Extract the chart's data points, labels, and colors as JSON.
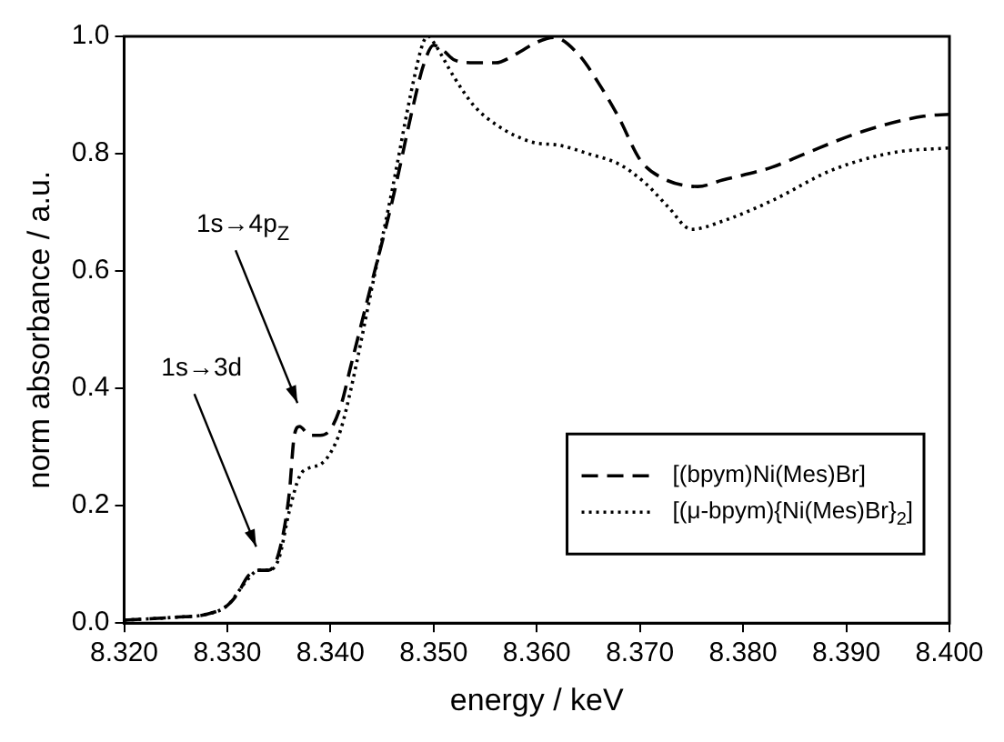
{
  "chart_data": {
    "type": "line",
    "xlabel": "energy / keV",
    "ylabel": "norm absorbance / a.u.",
    "xlim": [
      8.32,
      8.4
    ],
    "xticks": [
      {
        "value": 8.32,
        "label": "8.320"
      },
      {
        "value": 8.33,
        "label": "8.330"
      },
      {
        "value": 8.34,
        "label": "8.340"
      },
      {
        "value": 8.35,
        "label": "8.350"
      },
      {
        "value": 8.36,
        "label": "8.360"
      },
      {
        "value": 8.37,
        "label": "8.370"
      },
      {
        "value": 8.38,
        "label": "8.380"
      },
      {
        "value": 8.39,
        "label": "8.390"
      },
      {
        "value": 8.4,
        "label": "8.400"
      }
    ],
    "ylim": [
      0,
      1
    ],
    "yticks": [
      {
        "value": 0,
        "label": "0.0"
      },
      {
        "value": 0.2,
        "label": "0.2"
      },
      {
        "value": 0.4,
        "label": "0.4"
      },
      {
        "value": 0.6,
        "label": "0.6"
      },
      {
        "value": 0.8,
        "label": "0.8"
      },
      {
        "value": 1,
        "label": "1.0"
      }
    ],
    "grid": false,
    "legend": "bottom right",
    "marker": "none",
    "annotations": [
      "1s→3d",
      "1s→4p$_{Z}$"
    ],
    "series": [
      {
        "name": "[(bpym)Ni(Mes)Br]",
        "color": "#000000",
        "line_style": "dashed",
        "x": [
          8.32,
          8.325,
          8.328,
          8.33,
          8.331,
          8.332,
          8.333,
          8.334,
          8.335,
          8.336,
          8.3365,
          8.337,
          8.338,
          8.339,
          8.34,
          8.341,
          8.342,
          8.344,
          8.346,
          8.348,
          8.349,
          8.35,
          8.351,
          8.352,
          8.354,
          8.356,
          8.358,
          8.36,
          8.3617,
          8.364,
          8.366,
          8.368,
          8.37,
          8.372,
          8.3756,
          8.378,
          8.3828,
          8.386,
          8.3916,
          8.3975,
          8.4
        ],
        "values": [
          0.005,
          0.01,
          0.015,
          0.03,
          0.05,
          0.08,
          0.09,
          0.09,
          0.12,
          0.22,
          0.32,
          0.335,
          0.32,
          0.32,
          0.33,
          0.37,
          0.44,
          0.58,
          0.72,
          0.88,
          0.95,
          0.985,
          0.975,
          0.96,
          0.955,
          0.955,
          0.97,
          0.99,
          0.998,
          0.97,
          0.92,
          0.86,
          0.79,
          0.76,
          0.744,
          0.755,
          0.777,
          0.8,
          0.838,
          0.864,
          0.867
        ]
      },
      {
        "name": "[(μ-bpym){Ni(Mes)Br}$_{2}$]",
        "color": "#000000",
        "line_style": "dotted",
        "x": [
          8.32,
          8.325,
          8.328,
          8.33,
          8.332,
          8.333,
          8.334,
          8.335,
          8.336,
          8.337,
          8.338,
          8.339,
          8.34,
          8.341,
          8.342,
          8.344,
          8.346,
          8.348,
          8.349,
          8.3495,
          8.35,
          8.352,
          8.354,
          8.3561,
          8.358,
          8.36,
          8.362,
          8.365,
          8.368,
          8.3705,
          8.3727,
          8.375,
          8.378,
          8.3828,
          8.3886,
          8.3946,
          8.4
        ],
        "values": [
          0.005,
          0.01,
          0.015,
          0.03,
          0.075,
          0.09,
          0.09,
          0.11,
          0.19,
          0.25,
          0.265,
          0.27,
          0.29,
          0.33,
          0.4,
          0.57,
          0.74,
          0.92,
          0.99,
          1.0,
          0.99,
          0.93,
          0.88,
          0.849,
          0.83,
          0.818,
          0.815,
          0.8,
          0.782,
          0.75,
          0.71,
          0.671,
          0.685,
          0.72,
          0.772,
          0.802,
          0.81
        ]
      }
    ]
  }
}
